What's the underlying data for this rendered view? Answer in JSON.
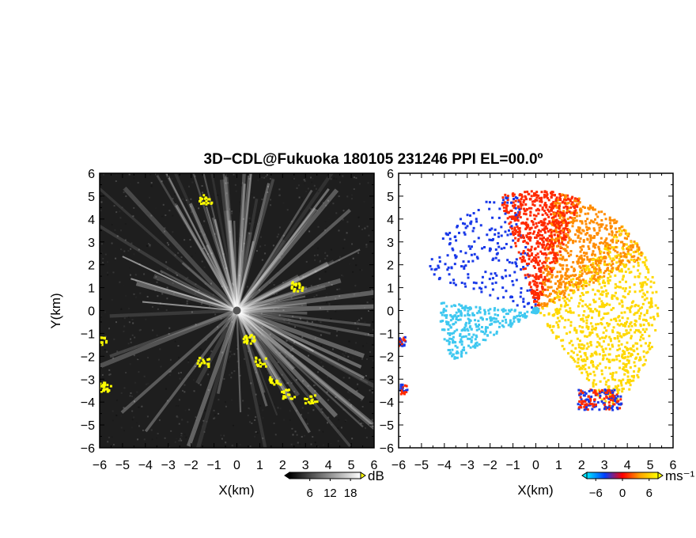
{
  "chart_data": {
    "type": "heatmap",
    "title": "3D−CDL@Fukuoka 180105 231246 PPI EL=00.0º",
    "xlim": [
      -6,
      6
    ],
    "ylim": [
      -6,
      6
    ],
    "xticks": [
      "−6",
      "−5",
      "−4",
      "−3",
      "−2",
      "−1",
      "0",
      "1",
      "2",
      "3",
      "4",
      "5",
      "6"
    ],
    "yticks": [
      "−6",
      "−5",
      "−4",
      "−3",
      "−2",
      "−1",
      "0",
      "1",
      "2",
      "3",
      "4",
      "5",
      "6"
    ],
    "panels": [
      {
        "name": "intensity",
        "xlabel": "X(km)",
        "ylabel": "Y(km)",
        "colorbar": {
          "unit": "dB",
          "tick_labels": [
            "6",
            "12",
            "18"
          ],
          "tick_values": [
            6,
            12,
            18
          ],
          "range": [
            0,
            21
          ],
          "colors": [
            "#000000",
            "#ffffff"
          ],
          "overflow_color": "#ffff00"
        },
        "background": "#1e1e1e",
        "ray_color": "#ffffff",
        "highlight_color": "#ffff00",
        "highlight_regions": [
          {
            "x": -6.0,
            "y": -1.3
          },
          {
            "x": -5.8,
            "y": -3.3
          },
          {
            "x": -1.5,
            "y": -2.2
          },
          {
            "x": -1.4,
            "y": 4.9
          },
          {
            "x": 0.5,
            "y": -1.2
          },
          {
            "x": 1.0,
            "y": -2.2
          },
          {
            "x": 1.6,
            "y": -3.0
          },
          {
            "x": 2.2,
            "y": -3.6
          },
          {
            "x": 3.2,
            "y": -3.8
          },
          {
            "x": 2.6,
            "y": 1.1
          }
        ]
      },
      {
        "name": "velocity",
        "xlabel": "X(km)",
        "ylabel": "",
        "colorbar": {
          "unit": "ms⁻¹",
          "tick_labels": [
            "−6",
            "0",
            "6"
          ],
          "tick_values": [
            -6,
            0,
            6
          ],
          "range": [
            -8,
            8
          ],
          "colors": [
            "#00e5ff",
            "#0040ff",
            "#ff0000",
            "#ffa500",
            "#ffff00"
          ]
        },
        "radial_extent_km": 5.3,
        "colors": {
          "approaching_far": "#3fc8f0",
          "approaching_near": "#1838e8",
          "receding_near": "#ff2a00",
          "receding_mid": "#ff8c00",
          "receding_far": "#ffd800"
        }
      }
    ]
  }
}
